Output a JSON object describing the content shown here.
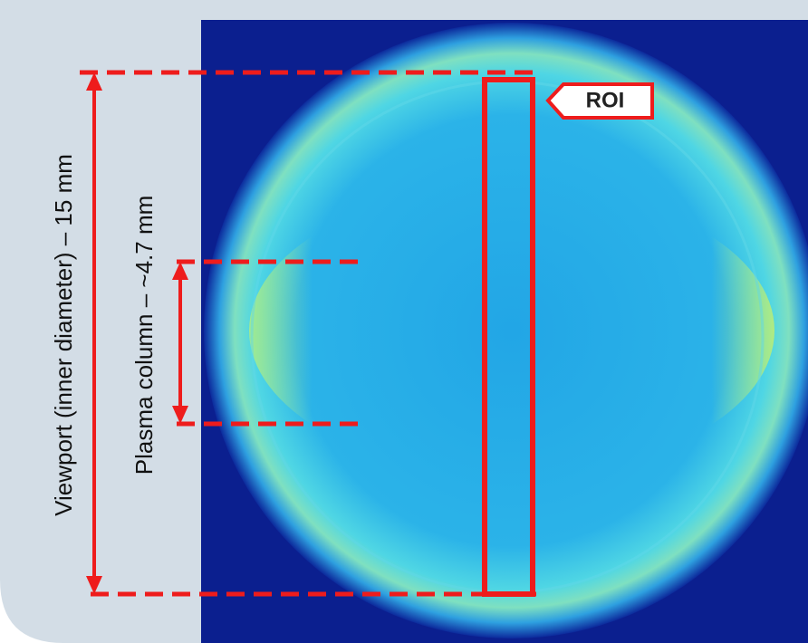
{
  "annotations": {
    "viewport_label": "Viewport (inner diameter) – 15 mm",
    "plasma_label": "Plasma column – ~4.7 mm",
    "roi_label": "ROI"
  }
}
